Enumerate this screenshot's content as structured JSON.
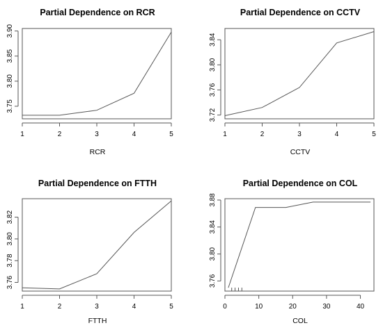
{
  "chart_data": [
    {
      "type": "line",
      "title": "Partial Dependence on RCR",
      "xlabel": "RCR",
      "x": [
        1,
        2,
        3,
        4,
        5
      ],
      "values": [
        3.732,
        3.732,
        3.742,
        3.776,
        3.898
      ],
      "xlim": [
        1,
        5
      ],
      "ylim": [
        3.725,
        3.905
      ],
      "xticks": [
        "1",
        "2",
        "3",
        "4",
        "5"
      ],
      "yticks": [
        "3.75",
        "3.80",
        "3.85",
        "3.90"
      ],
      "ytick_values": [
        3.75,
        3.8,
        3.85,
        3.9
      ]
    },
    {
      "type": "line",
      "title": "Partial Dependence on CCTV",
      "xlabel": "CCTV",
      "x": [
        1,
        2,
        3,
        4,
        5
      ],
      "values": [
        3.719,
        3.732,
        3.764,
        3.835,
        3.853
      ],
      "xlim": [
        1,
        5
      ],
      "ylim": [
        3.714,
        3.858
      ],
      "xticks": [
        "1",
        "2",
        "3",
        "4",
        "5"
      ],
      "yticks": [
        "3.72",
        "3.76",
        "3.80",
        "3.84"
      ],
      "ytick_values": [
        3.72,
        3.76,
        3.8,
        3.84
      ]
    },
    {
      "type": "line",
      "title": "Partial Dependence on FTTH",
      "xlabel": "FTTH",
      "x": [
        1,
        2,
        3,
        4,
        5
      ],
      "values": [
        3.755,
        3.754,
        3.768,
        3.806,
        3.835
      ],
      "xlim": [
        1,
        5
      ],
      "ylim": [
        3.752,
        3.837
      ],
      "xticks": [
        "1",
        "2",
        "3",
        "4",
        "5"
      ],
      "yticks": [
        "3.76",
        "3.78",
        "3.80",
        "3.82"
      ],
      "ytick_values": [
        3.76,
        3.78,
        3.8,
        3.82
      ]
    },
    {
      "type": "line",
      "title": "Partial Dependence on COL",
      "xlabel": "COL",
      "x": [
        1,
        9,
        18,
        26,
        43
      ],
      "values": [
        3.75,
        3.869,
        3.869,
        3.877,
        3.877
      ],
      "xlim": [
        0,
        44
      ],
      "ylim": [
        3.745,
        3.882
      ],
      "xticks": [
        "0",
        "10",
        "20",
        "30",
        "40"
      ],
      "xtick_values": [
        0,
        10,
        20,
        30,
        40
      ],
      "yticks": [
        "3.76",
        "3.80",
        "3.84",
        "3.88"
      ],
      "ytick_values": [
        3.76,
        3.8,
        3.84,
        3.88
      ],
      "rug": [
        2,
        3,
        4,
        5
      ]
    }
  ]
}
